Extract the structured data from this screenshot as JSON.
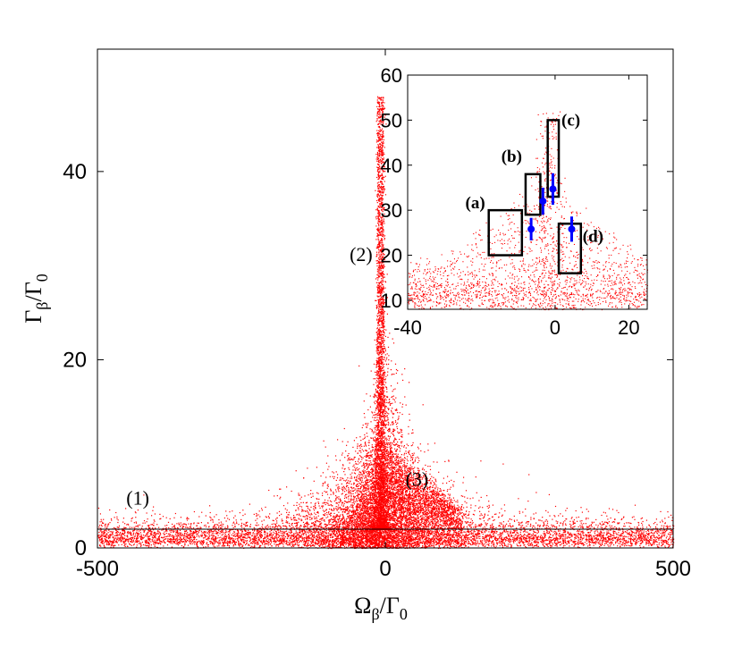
{
  "chart_data": [
    {
      "type": "scatter",
      "panel": "main",
      "xlabel": {
        "base": "Ω",
        "sub": "β",
        "sep": "/Γ",
        "sub2": "0"
      },
      "ylabel": {
        "base": "Γ",
        "sub": "β",
        "sep": "/Γ",
        "sub2": "0"
      },
      "xlim": [
        -500,
        500
      ],
      "ylim": [
        0,
        53
      ],
      "xticks": [
        -500,
        0,
        500
      ],
      "yticks": [
        0,
        20,
        40
      ],
      "xtick_labels": [
        "-500",
        "0",
        "500"
      ],
      "ytick_labels": [
        "0",
        "20",
        "40"
      ],
      "grid": false,
      "point_color": "#ff0000",
      "line_color": "#000000",
      "reference_line": {
        "y": 2
      },
      "region_labels": [
        {
          "text": "(1)",
          "x": -430,
          "y": 4.6
        },
        {
          "text": "(2)",
          "x": -42,
          "y": 30.5
        },
        {
          "text": "(3)",
          "x": 55,
          "y": 6.6
        }
      ]
    },
    {
      "type": "scatter",
      "panel": "inset",
      "xlim": [
        -40,
        25
      ],
      "ylim": [
        8,
        60
      ],
      "xticks": [
        -40,
        0,
        20
      ],
      "yticks": [
        10,
        20,
        30,
        40,
        50,
        60
      ],
      "xtick_labels": [
        "-40",
        "0",
        "20"
      ],
      "ytick_labels": [
        "10",
        "20",
        "30",
        "40",
        "50",
        "60"
      ],
      "grid": false,
      "point_color": "#ff0000",
      "box_color": "#000000",
      "marker_color": "#0000ff",
      "boxes": [
        {
          "label": "(a)",
          "x0": -18,
          "x1": -9,
          "y0": 20,
          "y1": 30
        },
        {
          "label": "(b)",
          "x0": -8,
          "x1": -4,
          "y0": 29,
          "y1": 38
        },
        {
          "label": "(c)",
          "x0": -2,
          "x1": 1,
          "y0": 33,
          "y1": 50
        },
        {
          "label": "(d)",
          "x0": 1,
          "x1": 7,
          "y0": 16,
          "y1": 27
        }
      ],
      "markers": [
        {
          "x": -6.5,
          "y": 25.8,
          "yerr": 2.5
        },
        {
          "x": -3.3,
          "y": 32.0,
          "yerr": 3.0
        },
        {
          "x": -0.6,
          "y": 34.7,
          "yerr": 3.5
        },
        {
          "x": 4.5,
          "y": 25.8,
          "yerr": 2.8
        }
      ]
    }
  ]
}
